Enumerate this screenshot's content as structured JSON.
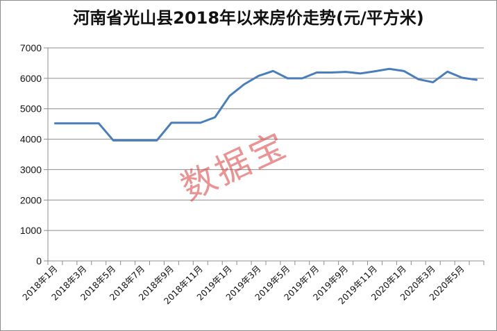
{
  "chart_data": {
    "type": "line",
    "title": "河南省光山县2018年以来房价走势(元/平方米)",
    "xlabel": "",
    "ylabel": "",
    "ylim": [
      0,
      7000
    ],
    "yticks": [
      0,
      1000,
      2000,
      3000,
      4000,
      5000,
      6000,
      7000
    ],
    "grid": true,
    "legend": "none",
    "categories": [
      "2018年1月",
      "2018年2月",
      "2018年3月",
      "2018年4月",
      "2018年5月",
      "2018年6月",
      "2018年7月",
      "2018年8月",
      "2018年9月",
      "2018年10月",
      "2018年11月",
      "2018年12月",
      "2019年1月",
      "2019年2月",
      "2019年3月",
      "2019年4月",
      "2019年5月",
      "2019年6月",
      "2019年7月",
      "2019年8月",
      "2019年9月",
      "2019年10月",
      "2019年11月",
      "2019年12月",
      "2020年1月",
      "2020年2月",
      "2020年3月",
      "2020年4月",
      "2020年5月",
      "2020年6月"
    ],
    "tick_labels": [
      "2018年1月",
      "2018年3月",
      "2018年5月",
      "2018年7月",
      "2018年9月",
      "2018年11月",
      "2019年1月",
      "2019年3月",
      "2019年5月",
      "2019年7月",
      "2019年9月",
      "2019年11月",
      "2020年1月",
      "2020年3月",
      "2020年5月"
    ],
    "series": [
      {
        "values": [
          4520,
          4520,
          4520,
          4520,
          3960,
          3960,
          3960,
          3960,
          4540,
          4540,
          4540,
          4720,
          5420,
          5800,
          6080,
          6240,
          6000,
          6000,
          6190,
          6190,
          6210,
          6160,
          6230,
          6310,
          6240,
          5970,
          5870,
          6220,
          6020,
          5950
        ],
        "color": "#4a7ebb"
      }
    ]
  },
  "watermark": "数据宝"
}
